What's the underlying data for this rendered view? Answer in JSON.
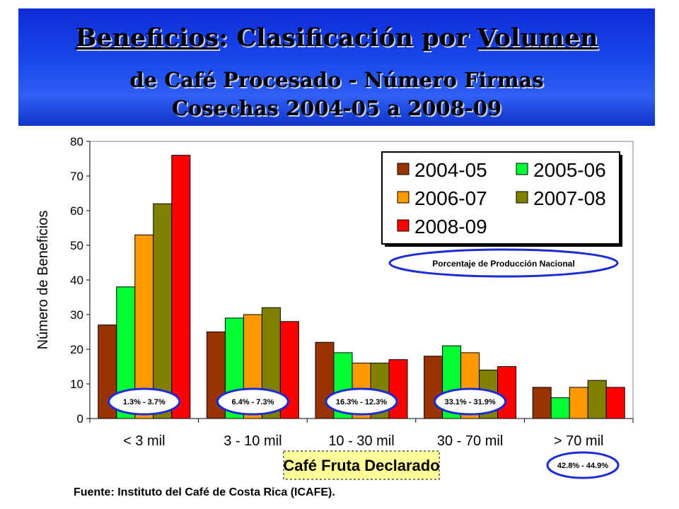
{
  "title": {
    "line1_a": "Beneficios",
    "line1_b": ": Clasificación por ",
    "line1_c": "Volumen",
    "line2": "de Café Procesado - Número Firmas",
    "line3": "Cosechas 2004-05 a 2008-09"
  },
  "source": "Fuente: Instituto del Café de Costa Rica (ICAFE).",
  "colors": {
    "banner": "#1a49ea",
    "s2004": "#993300",
    "s2005": "#00ff33",
    "s2006": "#ff9900",
    "s2007": "#808000",
    "s2008": "#ff0000",
    "ellipse": "#1a2bd8",
    "xlabel_box": "#ffff99"
  },
  "chart_data": {
    "type": "bar",
    "categories": [
      "< 3 mil",
      "3 - 10 mil",
      "10 - 30 mil",
      "30 - 70 mil",
      "> 70 mil"
    ],
    "series": [
      {
        "name": "2004-05",
        "values": [
          27,
          25,
          22,
          18,
          9
        ]
      },
      {
        "name": "2005-06",
        "values": [
          38,
          29,
          19,
          21,
          6
        ]
      },
      {
        "name": "2006-07",
        "values": [
          53,
          30,
          16,
          19,
          9
        ]
      },
      {
        "name": "2007-08",
        "values": [
          62,
          32,
          16,
          14,
          11
        ]
      },
      {
        "name": "2008-09",
        "values": [
          76,
          28,
          17,
          15,
          9
        ]
      }
    ],
    "ylabel": "Número de Beneficios",
    "xlabel": "Café Fruta Declarado",
    "ylim": [
      0,
      80
    ],
    "yticks": [
      0,
      10,
      20,
      30,
      40,
      50,
      60,
      70,
      80
    ],
    "grid": false,
    "legend_position": "top-right",
    "pct_title": "Porcentaje de Producción Nacional",
    "pct_labels": [
      "1.3% - 3.7%",
      "6.4% - 7.3%",
      "16.3% - 12.3%",
      "33.1% - 31.9%",
      "42.8% - 44.9%"
    ]
  }
}
